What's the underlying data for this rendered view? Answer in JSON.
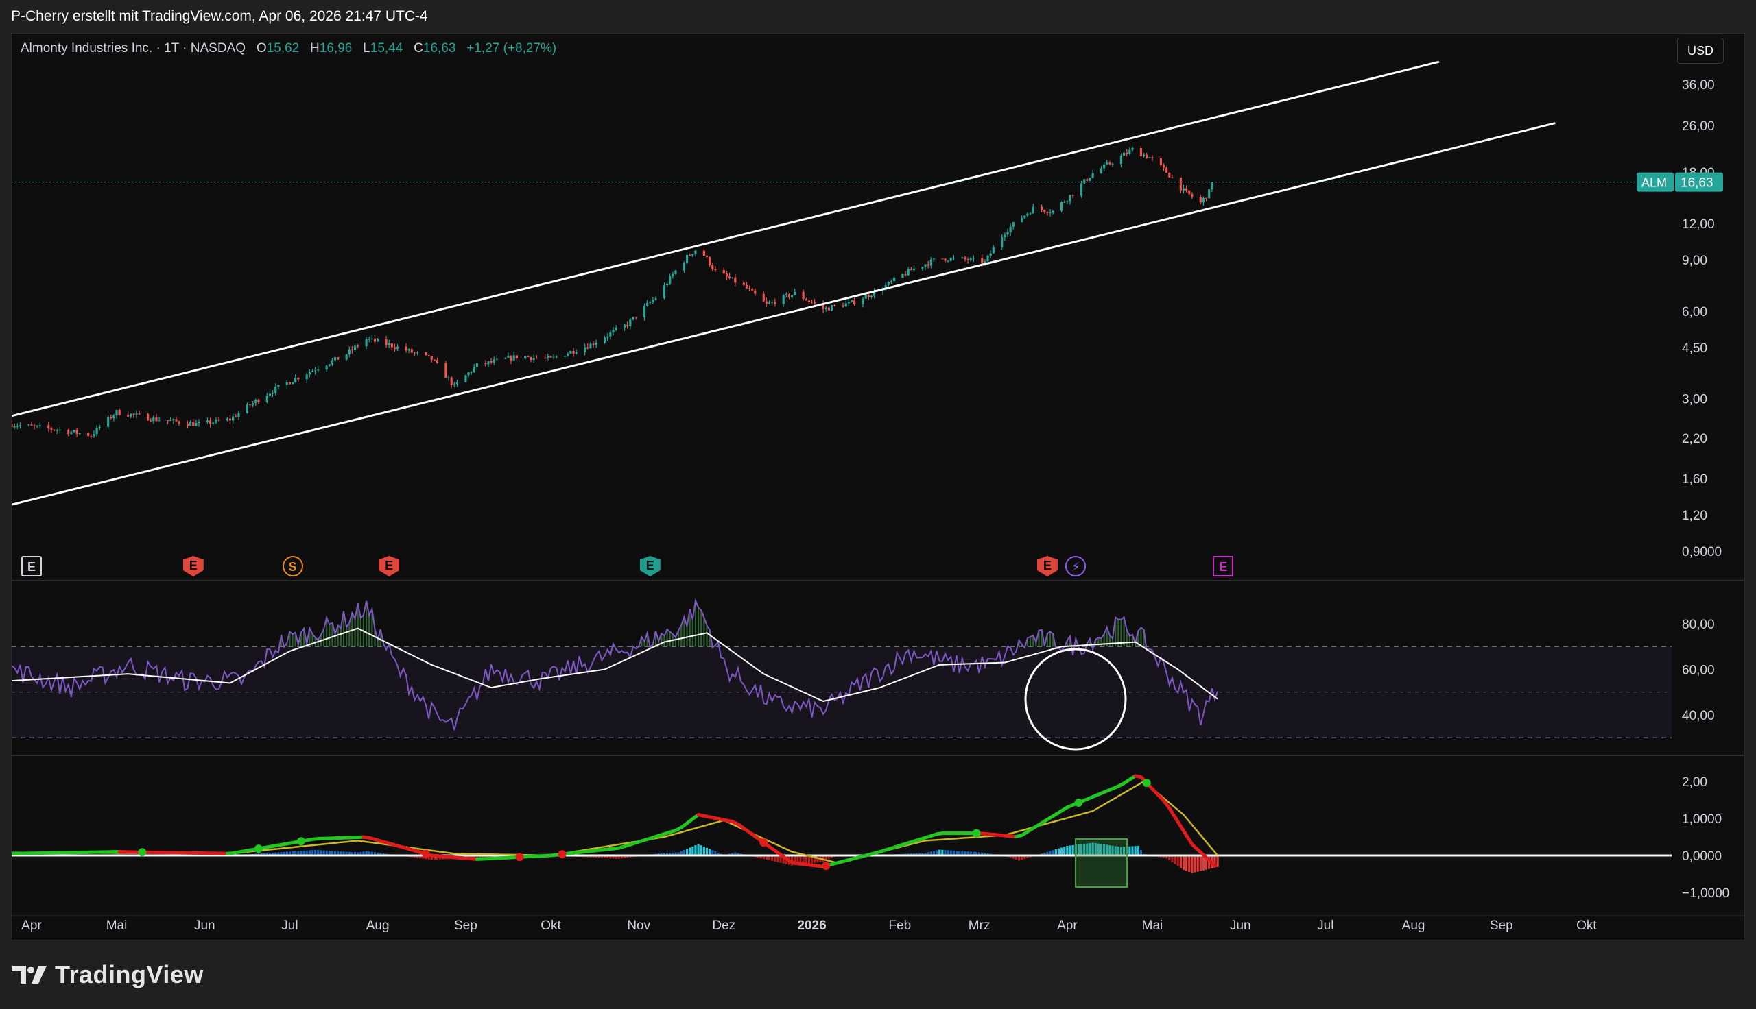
{
  "header": {
    "attribution": "P-Cherry erstellt mit TradingView.com, Apr 06, 2026 21:47 UTC-4"
  },
  "legend": {
    "symbol": "Almonty Industries Inc. · 1T · NASDAQ",
    "open_label": "O",
    "open": "15,62",
    "high_label": "H",
    "high": "16,96",
    "low_label": "L",
    "low": "15,44",
    "close_label": "C",
    "close": "16,63",
    "change": "+1,27 (+8,27%)"
  },
  "currency": "USD",
  "last_price": {
    "ticker": "ALM",
    "value": "16,63"
  },
  "brand": {
    "name": "TradingView"
  },
  "colors": {
    "up": "#26a69a",
    "down": "#ef5350",
    "rsi": "#7e57c2",
    "rsi_ma": "#ffffff",
    "macd_up": "#22c522",
    "macd_down": "#e01b1b",
    "signal": "#c8b628",
    "hist_pos_bright": "#26c6da",
    "hist_pos": "#1565c0",
    "hist_neg": "#b71c1c"
  },
  "events": [
    {
      "type": "earnings",
      "glyph": "E",
      "style": "neutral",
      "date": "2025-04-01"
    },
    {
      "type": "earnings",
      "glyph": "E",
      "style": "red",
      "date": "2025-05-28"
    },
    {
      "type": "split",
      "glyph": "S",
      "style": "orange",
      "date": "2025-07-02"
    },
    {
      "type": "earnings",
      "glyph": "E",
      "style": "red",
      "date": "2025-08-05"
    },
    {
      "type": "earnings",
      "glyph": "E",
      "style": "teal",
      "date": "2025-11-05"
    },
    {
      "type": "earnings",
      "glyph": "E",
      "style": "red",
      "date": "2026-03-25"
    },
    {
      "type": "dividend",
      "glyph": "⚡",
      "style": "purple",
      "date": "2026-04-04"
    },
    {
      "type": "earnings",
      "glyph": "E",
      "style": "pink",
      "date": "2026-05-26"
    }
  ],
  "chart_data": [
    {
      "type": "candlestick",
      "title": "Almonty Industries Inc.",
      "x_range": [
        "2025-03-25",
        "2026-10-31"
      ],
      "y_scale": "log",
      "y_ticks": [
        "36,00",
        "26,00",
        "18,00",
        "12,00",
        "9,00",
        "6,00",
        "4,50",
        "3,00",
        "2,20",
        "1,60",
        "1,20",
        "0,9000"
      ],
      "y_tick_values": [
        36,
        26,
        18,
        12,
        9,
        6,
        4.5,
        3,
        2.2,
        1.6,
        1.2,
        0.9
      ],
      "x_ticks": [
        "Apr",
        "Mai",
        "Jun",
        "Jul",
        "Aug",
        "Sep",
        "Okt",
        "Nov",
        "Dez",
        "2026",
        "Feb",
        "Mrz",
        "Apr",
        "Mai",
        "Jun",
        "Jul",
        "Aug",
        "Sep",
        "Okt"
      ],
      "x_tick_dates": [
        "2025-04-01",
        "2025-05-01",
        "2025-06-01",
        "2025-07-01",
        "2025-08-01",
        "2025-09-01",
        "2025-10-01",
        "2025-11-01",
        "2025-12-01",
        "2026-01-01",
        "2026-02-01",
        "2026-03-01",
        "2026-04-01",
        "2026-05-01",
        "2026-06-01",
        "2026-07-01",
        "2026-08-01",
        "2026-09-01",
        "2026-10-01"
      ],
      "close_path": [
        [
          "2025-03-25",
          2.45
        ],
        [
          "2025-04-10",
          2.35
        ],
        [
          "2025-04-22",
          2.25
        ],
        [
          "2025-05-01",
          2.7
        ],
        [
          "2025-05-15",
          2.55
        ],
        [
          "2025-05-30",
          2.45
        ],
        [
          "2025-06-10",
          2.55
        ],
        [
          "2025-06-25",
          3.2
        ],
        [
          "2025-07-05",
          3.6
        ],
        [
          "2025-07-20",
          4.2
        ],
        [
          "2025-07-28",
          4.8
        ],
        [
          "2025-08-05",
          4.6
        ],
        [
          "2025-08-20",
          4.1
        ],
        [
          "2025-08-28",
          3.3
        ],
        [
          "2025-09-05",
          3.9
        ],
        [
          "2025-09-20",
          4.2
        ],
        [
          "2025-10-01",
          4.1
        ],
        [
          "2025-10-15",
          4.6
        ],
        [
          "2025-10-28",
          5.4
        ],
        [
          "2025-11-08",
          6.8
        ],
        [
          "2025-11-18",
          9.2
        ],
        [
          "2025-11-22",
          9.9
        ],
        [
          "2025-11-28",
          8.2
        ],
        [
          "2025-12-08",
          7.3
        ],
        [
          "2025-12-16",
          6.3
        ],
        [
          "2025-12-26",
          6.9
        ],
        [
          "2026-01-05",
          6.1
        ],
        [
          "2026-01-15",
          6.4
        ],
        [
          "2026-01-25",
          7.1
        ],
        [
          "2026-02-05",
          8.3
        ],
        [
          "2026-02-15",
          9.1
        ],
        [
          "2026-02-25",
          9.0
        ],
        [
          "2026-03-03",
          8.8
        ],
        [
          "2026-03-10",
          11.2
        ],
        [
          "2026-03-20",
          13.5
        ],
        [
          "2026-03-27",
          13.2
        ],
        [
          "2026-04-03",
          15.2
        ],
        [
          "2026-04-10",
          17.8
        ],
        [
          "2026-04-17",
          19.5
        ],
        [
          "2026-04-24",
          21.5
        ],
        [
          "2026-04-30",
          20.2
        ],
        [
          "2026-05-06",
          18.0
        ],
        [
          "2026-05-12",
          15.5
        ],
        [
          "2026-05-18",
          14.1
        ],
        [
          "2026-05-24",
          16.63
        ]
      ],
      "last_close": 16.63,
      "channel": {
        "upper": [
          [
            "2025-03-25",
            2.62
          ],
          [
            "2026-08-10",
            43.0
          ]
        ],
        "lower": [
          [
            "2025-03-25",
            1.3
          ],
          [
            "2026-09-20",
            26.5
          ]
        ]
      }
    },
    {
      "type": "line",
      "title": "",
      "y_ticks": [
        "80,00",
        "60,00",
        "40,00"
      ],
      "y_tick_values": [
        80,
        60,
        40
      ],
      "band": [
        30,
        70
      ],
      "midline": 50,
      "series": [
        {
          "role": "rsi",
          "values_path": [
            [
              "2025-03-25",
              60
            ],
            [
              "2025-04-15",
              52
            ],
            [
              "2025-05-05",
              62
            ],
            [
              "2025-05-25",
              55
            ],
            [
              "2025-06-15",
              55
            ],
            [
              "2025-06-28",
              72
            ],
            [
              "2025-07-18",
              80
            ],
            [
              "2025-07-28",
              87
            ],
            [
              "2025-08-08",
              60
            ],
            [
              "2025-08-22",
              38
            ],
            [
              "2025-08-28",
              35
            ],
            [
              "2025-09-10",
              60
            ],
            [
              "2025-09-28",
              55
            ],
            [
              "2025-10-12",
              62
            ],
            [
              "2025-10-30",
              70
            ],
            [
              "2025-11-15",
              78
            ],
            [
              "2025-11-22",
              88
            ],
            [
              "2025-12-02",
              60
            ],
            [
              "2025-12-18",
              45
            ],
            [
              "2026-01-05",
              42
            ],
            [
              "2026-01-20",
              55
            ],
            [
              "2026-02-05",
              68
            ],
            [
              "2026-02-20",
              62
            ],
            [
              "2026-03-05",
              62
            ],
            [
              "2026-03-20",
              74
            ],
            [
              "2026-04-05",
              70
            ],
            [
              "2026-04-20",
              80
            ],
            [
              "2026-04-28",
              73
            ],
            [
              "2026-05-10",
              52
            ],
            [
              "2026-05-18",
              40
            ],
            [
              "2026-05-24",
              52
            ]
          ]
        },
        {
          "role": "rsi-ma",
          "values_path": [
            [
              "2025-03-25",
              55
            ],
            [
              "2025-05-05",
              58
            ],
            [
              "2025-06-10",
              54
            ],
            [
              "2025-07-01",
              68
            ],
            [
              "2025-07-25",
              78
            ],
            [
              "2025-08-20",
              62
            ],
            [
              "2025-09-10",
              52
            ],
            [
              "2025-09-28",
              56
            ],
            [
              "2025-10-20",
              60
            ],
            [
              "2025-11-10",
              72
            ],
            [
              "2025-11-25",
              76
            ],
            [
              "2025-12-15",
              58
            ],
            [
              "2026-01-05",
              46
            ],
            [
              "2026-01-25",
              52
            ],
            [
              "2026-02-15",
              62
            ],
            [
              "2026-03-10",
              63
            ],
            [
              "2026-03-30",
              70
            ],
            [
              "2026-04-25",
              72
            ],
            [
              "2026-05-10",
              60
            ],
            [
              "2026-05-24",
              47
            ]
          ]
        }
      ]
    },
    {
      "type": "line",
      "title": "",
      "y_ticks": [
        "2,00",
        "1,0000",
        "0,0000",
        "−1,0000"
      ],
      "y_tick_values": [
        2,
        1,
        0,
        -1
      ],
      "series": [
        {
          "role": "macd",
          "values_path": [
            [
              "2025-03-25",
              0.05
            ],
            [
              "2025-05-01",
              0.1
            ],
            [
              "2025-06-10",
              0.05
            ],
            [
              "2025-07-10",
              0.45
            ],
            [
              "2025-07-28",
              0.5
            ],
            [
              "2025-08-20",
              0.0
            ],
            [
              "2025-09-05",
              -0.1
            ],
            [
              "2025-10-01",
              0.0
            ],
            [
              "2025-10-25",
              0.2
            ],
            [
              "2025-11-15",
              0.7
            ],
            [
              "2025-11-22",
              1.1
            ],
            [
              "2025-12-05",
              0.9
            ],
            [
              "2025-12-25",
              -0.2
            ],
            [
              "2026-01-05",
              -0.3
            ],
            [
              "2026-01-25",
              0.1
            ],
            [
              "2026-02-15",
              0.6
            ],
            [
              "2026-03-01",
              0.6
            ],
            [
              "2026-03-15",
              0.5
            ],
            [
              "2026-04-01",
              1.3
            ],
            [
              "2026-04-20",
              1.9
            ],
            [
              "2026-04-26",
              2.2
            ],
            [
              "2026-05-06",
              1.4
            ],
            [
              "2026-05-15",
              0.3
            ],
            [
              "2026-05-24",
              -0.35
            ]
          ]
        },
        {
          "role": "signal",
          "values_path": [
            [
              "2025-03-25",
              0.08
            ],
            [
              "2025-06-10",
              0.05
            ],
            [
              "2025-07-25",
              0.4
            ],
            [
              "2025-08-28",
              0.05
            ],
            [
              "2025-10-01",
              0.0
            ],
            [
              "2025-11-10",
              0.5
            ],
            [
              "2025-12-01",
              0.95
            ],
            [
              "2025-12-25",
              0.1
            ],
            [
              "2026-01-10",
              -0.2
            ],
            [
              "2026-02-10",
              0.4
            ],
            [
              "2026-03-10",
              0.55
            ],
            [
              "2026-04-10",
              1.2
            ],
            [
              "2026-04-28",
              2.0
            ],
            [
              "2026-05-12",
              1.1
            ],
            [
              "2026-05-24",
              0.0
            ]
          ]
        }
      ]
    }
  ]
}
